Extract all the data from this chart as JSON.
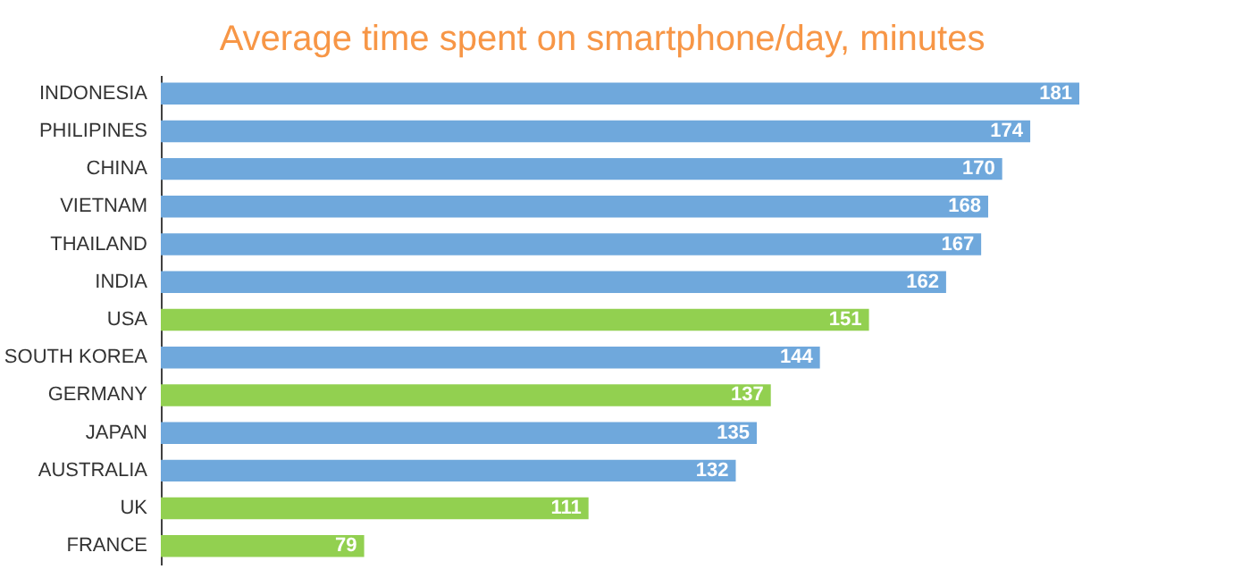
{
  "chart_data": {
    "type": "bar",
    "orientation": "horizontal",
    "title": "Average time spent on smartphone/day, minutes",
    "categories": [
      "INDONESIA",
      "PHILIPINES",
      "CHINA",
      "VIETNAM",
      "THAILAND",
      "INDIA",
      "USA",
      "SOUTH KOREA",
      "GERMANY",
      "JAPAN",
      "AUSTRALIA",
      "UK",
      "FRANCE"
    ],
    "values": [
      181,
      174,
      170,
      168,
      167,
      162,
      151,
      144,
      137,
      135,
      132,
      111,
      79
    ],
    "colors": [
      "#6fa8dc",
      "#6fa8dc",
      "#6fa8dc",
      "#6fa8dc",
      "#6fa8dc",
      "#6fa8dc",
      "#92d050",
      "#6fa8dc",
      "#92d050",
      "#6fa8dc",
      "#6fa8dc",
      "#92d050",
      "#92d050"
    ],
    "xlim": [
      50,
      181
    ],
    "tick_labels": "y",
    "data_labels": true
  }
}
